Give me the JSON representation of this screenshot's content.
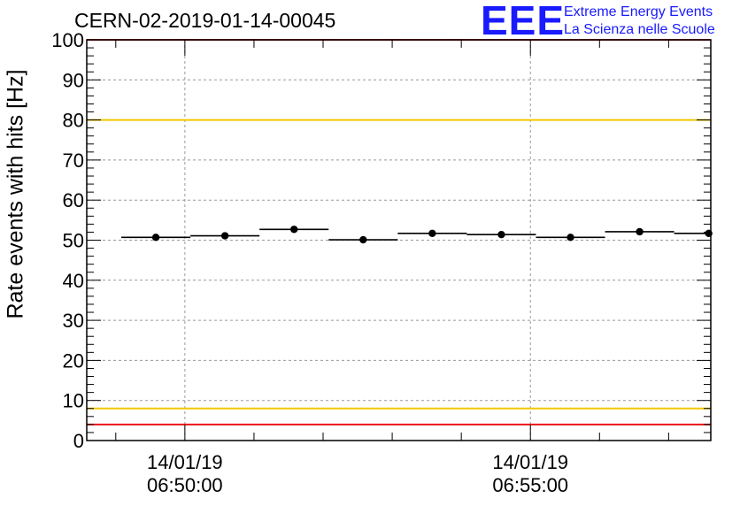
{
  "header": {
    "title": "CERN-02-2019-01-14-00045",
    "logo_mark": "EEE",
    "logo_line1": "Extreme Energy Events",
    "logo_line2": "La Scienza nelle Scuole"
  },
  "chart_data": {
    "type": "scatter",
    "title": "CERN-02-2019-01-14-00045",
    "ylabel": "Rate events with hits [Hz]",
    "ylim": [
      0,
      100
    ],
    "y_ticks": [
      0,
      10,
      20,
      30,
      40,
      50,
      60,
      70,
      80,
      90,
      100
    ],
    "x_range_minutes": [
      -1.42,
      7.61
    ],
    "x_ticks": [
      {
        "minute": 0,
        "date": "14/01/19",
        "time": "06:50:00"
      },
      {
        "minute": 5,
        "date": "14/01/19",
        "time": "06:55:00"
      }
    ],
    "grid": true,
    "series": [
      {
        "bin_centers_minutes": [
          -0.42,
          0.58,
          1.58,
          2.58,
          3.58,
          4.58,
          5.58,
          6.58,
          7.58
        ],
        "bin_width_minutes": 1.0,
        "values": [
          50.7,
          51.1,
          52.7,
          50.1,
          51.7,
          51.4,
          50.7,
          52.1,
          51.7
        ]
      }
    ],
    "reference_lines": [
      {
        "y": 100,
        "color": "#e8141c"
      },
      {
        "y": 80,
        "color": "#f0c800"
      },
      {
        "y": 8,
        "color": "#f0c800"
      },
      {
        "y": 4,
        "color": "#e8141c"
      }
    ]
  }
}
